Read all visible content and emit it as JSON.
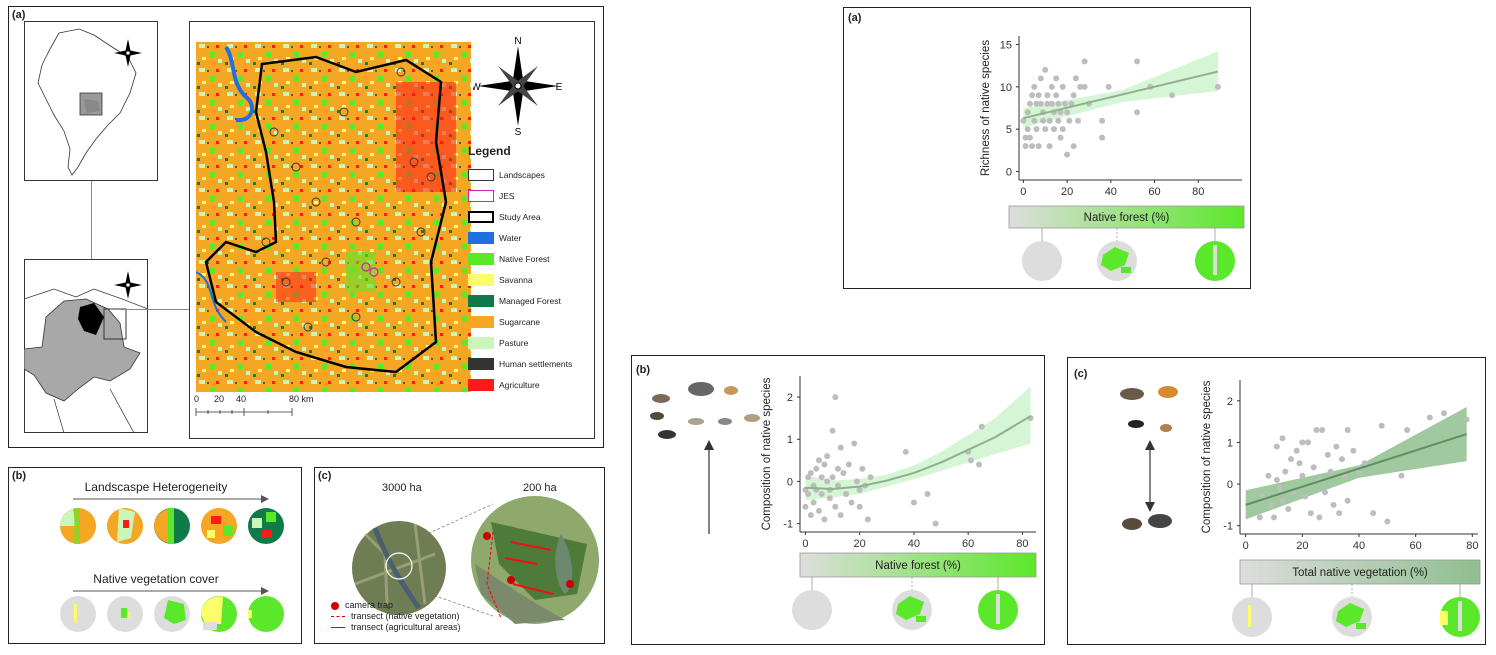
{
  "panels": {
    "map": {
      "label": "(a)",
      "compass": {
        "n": "N",
        "s": "S",
        "e": "E",
        "w": "W"
      },
      "legend_title": "Legend",
      "legend": [
        {
          "label": "Landscapes",
          "color": "#ffffff",
          "border": "#333333"
        },
        {
          "label": "JES",
          "color": "#ffffff",
          "border": "#d01fb3"
        },
        {
          "label": "Study Area",
          "color": "#ffffff",
          "border": "#000000"
        },
        {
          "label": "Water",
          "color": "#1f6fe0",
          "border": "#1f6fe0"
        },
        {
          "label": "Native Forest",
          "color": "#5ce82a",
          "border": "#5ce82a"
        },
        {
          "label": "Savanna",
          "color": "#fdfd6a",
          "border": "#fdfd6a"
        },
        {
          "label": "Managed Forest",
          "color": "#0f7a4a",
          "border": "#0f7a4a"
        },
        {
          "label": "Sugarcane",
          "color": "#f5a623",
          "border": "#f5a623"
        },
        {
          "label": "Pasture",
          "color": "#ccf5b8",
          "border": "#ccf5b8"
        },
        {
          "label": "Human settlements",
          "color": "#333333",
          "border": "#333333"
        },
        {
          "label": "Agriculture",
          "color": "#ff1a1a",
          "border": "#ff1a1a"
        }
      ],
      "scale_ticks": [
        "0",
        "20",
        "40",
        "80 km"
      ]
    },
    "heterogeneity": {
      "label": "(b)",
      "title1": "Landscaspe Heterogeneity",
      "title2": "Native vegetation cover"
    },
    "sampling": {
      "label": "(c)",
      "size1": "3000 ha",
      "size2": "200 ha",
      "legend": [
        "camera trap",
        "transect (native vegetation)",
        "transect (agricultural areas)"
      ]
    },
    "plot_a": {
      "label": "(a)",
      "ylabel": "Richness of native species",
      "bar_label": "Native forest (%)",
      "yticks": [
        "0",
        "5",
        "10",
        "15"
      ],
      "xticks": [
        "0",
        "20",
        "40",
        "60",
        "80"
      ]
    },
    "plot_b": {
      "label": "(b)",
      "ylabel": "Composition of native species",
      "bar_label": "Native forest (%)",
      "yticks": [
        "-1",
        "0",
        "1",
        "2"
      ],
      "xticks": [
        "0",
        "20",
        "40",
        "60",
        "80"
      ]
    },
    "plot_c": {
      "label": "(c)",
      "ylabel": "Composition of native species",
      "bar_label": "Total native vegetation (%)",
      "yticks": [
        "-1",
        "0",
        "1",
        "2"
      ],
      "xticks": [
        "0",
        "20",
        "40",
        "60",
        "80"
      ]
    }
  },
  "chart_data": [
    {
      "type": "scatter",
      "xlabel": "Native forest (%)",
      "ylabel": "Richness of native species",
      "xlim": [
        -2,
        100
      ],
      "ylim": [
        -1,
        16
      ],
      "points": [
        [
          0,
          6
        ],
        [
          1,
          4
        ],
        [
          1,
          3
        ],
        [
          2,
          5
        ],
        [
          2,
          7
        ],
        [
          3,
          4
        ],
        [
          3,
          8
        ],
        [
          4,
          9
        ],
        [
          4,
          3
        ],
        [
          5,
          6
        ],
        [
          5,
          10
        ],
        [
          6,
          8
        ],
        [
          6,
          5
        ],
        [
          7,
          9
        ],
        [
          7,
          3
        ],
        [
          8,
          8
        ],
        [
          8,
          11
        ],
        [
          9,
          6
        ],
        [
          9,
          7
        ],
        [
          10,
          12
        ],
        [
          10,
          5
        ],
        [
          11,
          8
        ],
        [
          11,
          9
        ],
        [
          12,
          3
        ],
        [
          12,
          6
        ],
        [
          13,
          8
        ],
        [
          13,
          10
        ],
        [
          14,
          7
        ],
        [
          14,
          5
        ],
        [
          15,
          9
        ],
        [
          15,
          11
        ],
        [
          16,
          8
        ],
        [
          16,
          6
        ],
        [
          17,
          7
        ],
        [
          17,
          4
        ],
        [
          18,
          10
        ],
        [
          18,
          5
        ],
        [
          19,
          8
        ],
        [
          20,
          7
        ],
        [
          20,
          2
        ],
        [
          21,
          6
        ],
        [
          22,
          8
        ],
        [
          23,
          9
        ],
        [
          23,
          3
        ],
        [
          24,
          11
        ],
        [
          25,
          6
        ],
        [
          26,
          10
        ],
        [
          28,
          10
        ],
        [
          28,
          13
        ],
        [
          30,
          8
        ],
        [
          36,
          6
        ],
        [
          36,
          4
        ],
        [
          39,
          10
        ],
        [
          52,
          13
        ],
        [
          52,
          7
        ],
        [
          58,
          10
        ],
        [
          68,
          9
        ],
        [
          89,
          10
        ]
      ],
      "fit": {
        "x": [
          0,
          89
        ],
        "y": [
          6.3,
          11.8
        ]
      },
      "band": {
        "x": [
          0,
          45,
          89
        ],
        "lower": [
          5.2,
          8.2,
          9.5
        ],
        "upper": [
          7.5,
          9.6,
          14.2
        ]
      },
      "colors": {
        "point": "#bdbdbd",
        "line": "#8fb08f",
        "band": "#ccf5cc"
      }
    },
    {
      "type": "scatter",
      "xlabel": "Native forest (%)",
      "ylabel": "Composition of native species",
      "xlim": [
        -2,
        85
      ],
      "ylim": [
        -1.2,
        2.5
      ],
      "points": [
        [
          0,
          -0.2
        ],
        [
          0,
          -0.6
        ],
        [
          1,
          0.1
        ],
        [
          1,
          -0.3
        ],
        [
          2,
          -0.8
        ],
        [
          2,
          0.2
        ],
        [
          3,
          -0.1
        ],
        [
          3,
          -0.5
        ],
        [
          4,
          0.3
        ],
        [
          4,
          -0.2
        ],
        [
          5,
          0.5
        ],
        [
          5,
          -0.7
        ],
        [
          6,
          0.1
        ],
        [
          6,
          -0.3
        ],
        [
          7,
          0.4
        ],
        [
          7,
          -0.9
        ],
        [
          8,
          0
        ],
        [
          8,
          0.6
        ],
        [
          9,
          -0.2
        ],
        [
          9,
          -0.4
        ],
        [
          10,
          1.2
        ],
        [
          10,
          0.1
        ],
        [
          11,
          2.0
        ],
        [
          11,
          -0.6
        ],
        [
          12,
          0.3
        ],
        [
          12,
          -0.1
        ],
        [
          13,
          0.8
        ],
        [
          13,
          -0.8
        ],
        [
          14,
          0.2
        ],
        [
          15,
          -0.3
        ],
        [
          16,
          0.4
        ],
        [
          17,
          -0.5
        ],
        [
          18,
          0.9
        ],
        [
          19,
          0
        ],
        [
          20,
          -0.6
        ],
        [
          20,
          -0.2
        ],
        [
          21,
          0.3
        ],
        [
          22,
          -0.1
        ],
        [
          23,
          -0.9
        ],
        [
          24,
          0.1
        ],
        [
          37,
          0.7
        ],
        [
          40,
          -0.5
        ],
        [
          45,
          -0.3
        ],
        [
          48,
          -1.0
        ],
        [
          60,
          0.7
        ],
        [
          61,
          0.5
        ],
        [
          64,
          0.4
        ],
        [
          65,
          1.3
        ],
        [
          83,
          1.5
        ]
      ],
      "fit": {
        "x": [
          0,
          10,
          20,
          30,
          40,
          50,
          60,
          70,
          83
        ],
        "y": [
          -0.15,
          -0.18,
          -0.12,
          0.02,
          0.2,
          0.45,
          0.75,
          1.05,
          1.55
        ]
      },
      "band": {
        "x": [
          0,
          10,
          20,
          30,
          40,
          50,
          60,
          70,
          83
        ],
        "lower": [
          -0.45,
          -0.38,
          -0.3,
          -0.12,
          0.05,
          0.25,
          0.45,
          0.65,
          0.9
        ],
        "upper": [
          0.15,
          0.02,
          0.06,
          0.16,
          0.38,
          0.7,
          1.1,
          1.5,
          2.25
        ]
      },
      "colors": {
        "point": "#bdbdbd",
        "line": "#8fb08f",
        "band": "#ccf5cc"
      }
    },
    {
      "type": "scatter",
      "xlabel": "Total native vegetation (%)",
      "ylabel": "Composition of native species",
      "xlim": [
        -2,
        82
      ],
      "ylim": [
        -1.2,
        2.5
      ],
      "points": [
        [
          5,
          -0.8
        ],
        [
          6,
          -0.3
        ],
        [
          8,
          0.2
        ],
        [
          9,
          -0.5
        ],
        [
          10,
          -0.8
        ],
        [
          11,
          0.9
        ],
        [
          11,
          0.1
        ],
        [
          12,
          -0.1
        ],
        [
          13,
          -0.4
        ],
        [
          13,
          1.1
        ],
        [
          14,
          0.3
        ],
        [
          15,
          -0.6
        ],
        [
          16,
          0.6
        ],
        [
          17,
          -0.2
        ],
        [
          18,
          0.8
        ],
        [
          19,
          0.5
        ],
        [
          20,
          1.0
        ],
        [
          20,
          0.2
        ],
        [
          21,
          -0.3
        ],
        [
          22,
          1.0
        ],
        [
          23,
          -0.7
        ],
        [
          24,
          0.4
        ],
        [
          25,
          1.3
        ],
        [
          26,
          -0.8
        ],
        [
          26,
          0.1
        ],
        [
          27,
          1.3
        ],
        [
          28,
          -0.2
        ],
        [
          29,
          0.7
        ],
        [
          30,
          0.3
        ],
        [
          31,
          -0.5
        ],
        [
          32,
          0.9
        ],
        [
          33,
          -0.7
        ],
        [
          34,
          0.6
        ],
        [
          35,
          0.2
        ],
        [
          36,
          1.3
        ],
        [
          36,
          -0.4
        ],
        [
          38,
          0.8
        ],
        [
          40,
          0.3
        ],
        [
          42,
          0.5
        ],
        [
          45,
          -0.7
        ],
        [
          48,
          1.4
        ],
        [
          50,
          -0.9
        ],
        [
          55,
          0.2
        ],
        [
          57,
          1.3
        ],
        [
          65,
          1.6
        ],
        [
          70,
          1.7
        ],
        [
          78,
          1.55
        ]
      ],
      "fit": {
        "x": [
          0,
          78
        ],
        "y": [
          -0.5,
          1.2
        ]
      },
      "band": {
        "x": [
          0,
          40,
          78
        ],
        "lower": [
          -0.85,
          0.15,
          0.55
        ],
        "upper": [
          -0.15,
          0.45,
          1.85
        ]
      },
      "colors": {
        "point": "#bdbdbd",
        "line": "#5f8f5f",
        "band": "#8fbf8f"
      }
    }
  ]
}
